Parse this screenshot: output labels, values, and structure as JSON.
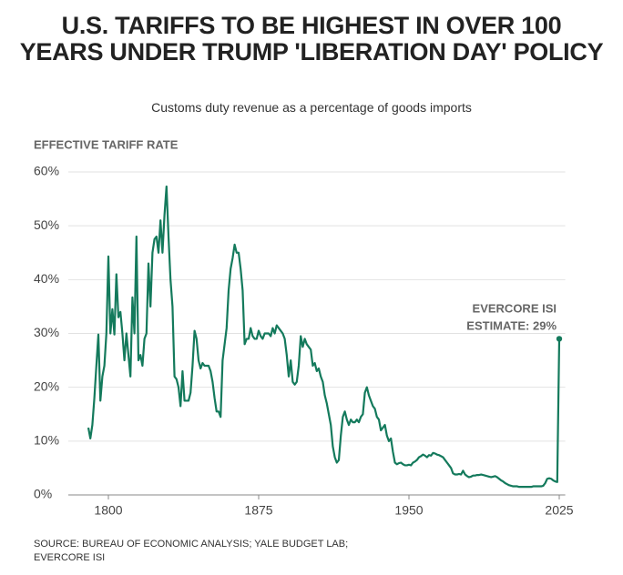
{
  "chart_data": {
    "type": "line",
    "title": "U.S. TARIFFS TO BE HIGHEST IN OVER 100 YEARS UNDER TRUMP 'LIBERATION DAY' POLICY",
    "subtitle": "Customs duty revenue as a percentage of goods imports",
    "ylabel": "EFFECTIVE TARIFF RATE",
    "annotation": [
      "EVERCORE ISI",
      "ESTIMATE: 29%"
    ],
    "source": [
      "SOURCE: BUREAU OF ECONOMIC ANALYSIS; YALE BUDGET LAB;",
      "EVERCORE ISI"
    ],
    "color": "#147a5c",
    "grid": true,
    "xlim": [
      1780,
      2028
    ],
    "ylim": [
      0,
      60
    ],
    "xticks": [
      1800,
      1875,
      1950,
      2025
    ],
    "yticks": [
      {
        "value": 0,
        "label": "0%"
      },
      {
        "value": 10,
        "label": "10%"
      },
      {
        "value": 20,
        "label": "20%"
      },
      {
        "value": 30,
        "label": "30%"
      },
      {
        "value": 40,
        "label": "40%"
      },
      {
        "value": 50,
        "label": "50%"
      },
      {
        "value": 60,
        "label": "60%"
      }
    ],
    "x": [
      1790,
      1791,
      1792,
      1793,
      1794,
      1795,
      1796,
      1797,
      1798,
      1799,
      1800,
      1801,
      1802,
      1803,
      1804,
      1805,
      1806,
      1807,
      1808,
      1809,
      1810,
      1811,
      1812,
      1813,
      1814,
      1815,
      1816,
      1817,
      1818,
      1819,
      1820,
      1821,
      1822,
      1823,
      1824,
      1825,
      1826,
      1827,
      1828,
      1829,
      1830,
      1831,
      1832,
      1833,
      1834,
      1835,
      1836,
      1837,
      1838,
      1839,
      1840,
      1841,
      1842,
      1843,
      1844,
      1845,
      1846,
      1847,
      1848,
      1849,
      1850,
      1851,
      1852,
      1853,
      1854,
      1855,
      1856,
      1857,
      1858,
      1859,
      1860,
      1861,
      1862,
      1863,
      1864,
      1865,
      1866,
      1867,
      1868,
      1869,
      1870,
      1871,
      1872,
      1873,
      1874,
      1875,
      1876,
      1877,
      1878,
      1879,
      1880,
      1881,
      1882,
      1883,
      1884,
      1885,
      1886,
      1887,
      1888,
      1889,
      1890,
      1891,
      1892,
      1893,
      1894,
      1895,
      1896,
      1897,
      1898,
      1899,
      1900,
      1901,
      1902,
      1903,
      1904,
      1905,
      1906,
      1907,
      1908,
      1909,
      1910,
      1911,
      1912,
      1913,
      1914,
      1915,
      1916,
      1917,
      1918,
      1919,
      1920,
      1921,
      1922,
      1923,
      1924,
      1925,
      1926,
      1927,
      1928,
      1929,
      1930,
      1931,
      1932,
      1933,
      1934,
      1935,
      1936,
      1937,
      1938,
      1939,
      1940,
      1941,
      1942,
      1943,
      1944,
      1945,
      1946,
      1947,
      1948,
      1949,
      1950,
      1951,
      1952,
      1953,
      1954,
      1955,
      1956,
      1957,
      1958,
      1959,
      1960,
      1961,
      1962,
      1963,
      1964,
      1965,
      1966,
      1967,
      1968,
      1969,
      1970,
      1971,
      1972,
      1973,
      1974,
      1975,
      1976,
      1977,
      1978,
      1979,
      1980,
      1981,
      1982,
      1983,
      1984,
      1985,
      1986,
      1987,
      1988,
      1989,
      1990,
      1991,
      1992,
      1993,
      1994,
      1995,
      1996,
      1997,
      1998,
      1999,
      2000,
      2001,
      2002,
      2003,
      2004,
      2005,
      2006,
      2007,
      2008,
      2009,
      2010,
      2011,
      2012,
      2013,
      2014,
      2015,
      2016,
      2017,
      2018,
      2019,
      2020,
      2021,
      2022,
      2023,
      2024,
      2025
    ],
    "values": [
      12.5,
      10.5,
      13,
      18,
      24,
      29.8,
      17.5,
      22,
      24,
      30,
      44.3,
      30,
      34.5,
      29.8,
      41,
      33,
      34,
      30,
      25,
      30,
      26,
      22,
      36.7,
      30,
      48,
      25,
      26,
      24,
      29,
      30,
      43,
      35,
      45,
      47.5,
      48,
      45,
      51,
      45,
      52,
      57.3,
      48,
      40,
      35,
      22,
      21.5,
      20,
      16.5,
      23,
      17.5,
      17.5,
      17.5,
      19,
      24,
      30.5,
      29,
      25,
      23.5,
      24.5,
      24,
      24,
      24,
      23,
      21,
      18,
      15.5,
      15.5,
      14.5,
      25,
      28,
      31,
      38,
      42,
      44,
      46.5,
      45,
      45,
      42,
      38,
      28,
      29,
      29,
      31,
      29.5,
      29,
      29,
      30.5,
      29.5,
      29,
      30,
      30,
      30,
      29.5,
      31,
      30,
      31.5,
      31,
      30.5,
      30,
      29,
      26,
      22,
      25,
      21,
      20.5,
      21,
      24,
      29.5,
      27.5,
      29,
      28,
      27.5,
      27,
      24,
      24.5,
      23,
      23.5,
      22,
      21,
      18.5,
      17,
      15,
      13,
      9,
      7,
      6,
      6.5,
      11,
      14.5,
      15.5,
      14,
      13,
      14,
      13.5,
      13.5,
      14,
      13.5,
      14.5,
      15,
      19,
      20,
      18.5,
      17.5,
      16.5,
      16,
      14.5,
      14,
      12,
      12.5,
      13,
      11,
      10,
      10.5,
      8,
      6,
      5.7,
      5.9,
      6,
      5.7,
      5.5,
      5.5,
      5.6,
      5.5,
      6,
      6.2,
      6.5,
      7,
      7.2,
      7.5,
      7.3,
      7,
      7.4,
      7.3,
      7.8,
      7.7,
      7.5,
      7.4,
      7.2,
      7,
      6.5,
      6,
      5.5,
      5,
      4,
      3.8,
      3.8,
      3.9,
      3.8,
      4.5,
      3.8,
      3.5,
      3.3,
      3.4,
      3.6,
      3.6,
      3.7,
      3.7,
      3.8,
      3.7,
      3.6,
      3.5,
      3.4,
      3.3,
      3.4,
      3.5,
      3.3,
      3,
      2.7,
      2.5,
      2.2,
      2,
      1.8,
      1.7,
      1.6,
      1.6,
      1.6,
      1.5,
      1.5,
      1.5,
      1.5,
      1.5,
      1.5,
      1.5,
      1.6,
      1.6,
      1.6,
      1.6,
      1.6,
      1.7,
      2.2,
      3,
      3.1,
      3,
      2.7,
      2.5,
      2.4,
      29
    ]
  }
}
